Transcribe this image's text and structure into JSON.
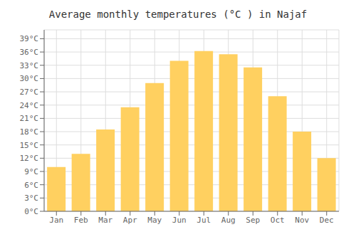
{
  "chart_data": {
    "type": "bar",
    "title": "Average monthly temperatures (°C ) in Najaf",
    "categories": [
      "Jan",
      "Feb",
      "Mar",
      "Apr",
      "May",
      "Jun",
      "Jul",
      "Aug",
      "Sep",
      "Oct",
      "Nov",
      "Dec"
    ],
    "values": [
      10,
      13,
      18.5,
      23.5,
      29,
      34,
      36.2,
      35.5,
      32.5,
      26,
      18,
      12
    ],
    "color": "#FFD060",
    "ylim": [
      0,
      41
    ],
    "yticks": [
      {
        "value": 0,
        "label": "0°C"
      },
      {
        "value": 3,
        "label": "3°C"
      },
      {
        "value": 6,
        "label": "6°C"
      },
      {
        "value": 9,
        "label": "9°C"
      },
      {
        "value": 12,
        "label": "12°C"
      },
      {
        "value": 15,
        "label": "15°C"
      },
      {
        "value": 18,
        "label": "18°C"
      },
      {
        "value": 21,
        "label": "21°C"
      },
      {
        "value": 24,
        "label": "24°C"
      },
      {
        "value": 27,
        "label": "27°C"
      },
      {
        "value": 30,
        "label": "30°C"
      },
      {
        "value": 33,
        "label": "33°C"
      },
      {
        "value": 36,
        "label": "36°C"
      },
      {
        "value": 39,
        "label": "39°C"
      }
    ],
    "grid": true
  }
}
